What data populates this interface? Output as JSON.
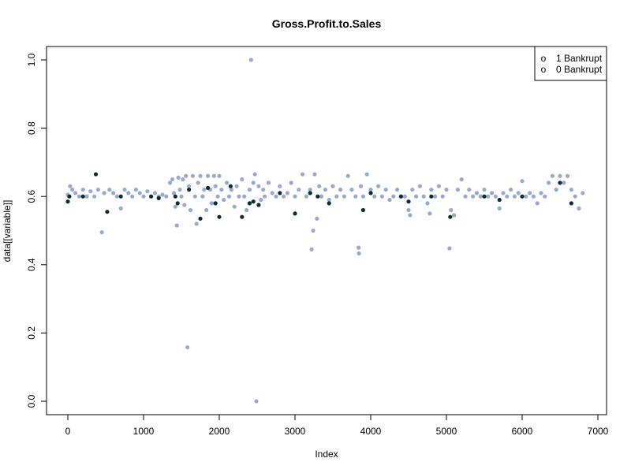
{
  "chart_data": {
    "type": "scatter",
    "title": "Gross.Profit.to.Sales",
    "xlabel": "Index",
    "ylabel": "data[[variable]]",
    "xlim": [
      0,
      7000
    ],
    "ylim": [
      0,
      1
    ],
    "x_ticks": [
      "0",
      "1000",
      "2000",
      "3000",
      "4000",
      "5000",
      "6000",
      "7000"
    ],
    "y_ticks": [
      "0.0",
      "0.2",
      "0.4",
      "0.6",
      "0.8",
      "1.0"
    ],
    "legend": {
      "position": "top-right",
      "entries": [
        {
          "symbol": "o",
          "label": "1 Bankrupt"
        },
        {
          "symbol": "o",
          "label": "0 Bankrupt"
        }
      ]
    },
    "colors": {
      "bankrupt_0": "#9aaacc",
      "bankrupt_1": "#0d2e2e"
    },
    "series": [
      {
        "name": "0 Bankrupt",
        "points": [
          [
            0,
            0.605
          ],
          [
            30,
            0.63
          ],
          [
            60,
            0.62
          ],
          [
            100,
            0.61
          ],
          [
            150,
            0.6
          ],
          [
            200,
            0.62
          ],
          [
            250,
            0.6
          ],
          [
            300,
            0.615
          ],
          [
            350,
            0.6
          ],
          [
            400,
            0.62
          ],
          [
            450,
            0.495
          ],
          [
            480,
            0.61
          ],
          [
            550,
            0.62
          ],
          [
            600,
            0.61
          ],
          [
            650,
            0.6
          ],
          [
            700,
            0.565
          ],
          [
            750,
            0.62
          ],
          [
            800,
            0.61
          ],
          [
            850,
            0.6
          ],
          [
            900,
            0.62
          ],
          [
            950,
            0.61
          ],
          [
            1000,
            0.6
          ],
          [
            1050,
            0.615
          ],
          [
            1100,
            0.6
          ],
          [
            1150,
            0.61
          ],
          [
            1200,
            0.6
          ],
          [
            1250,
            0.605
          ],
          [
            1300,
            0.6
          ],
          [
            1350,
            0.64
          ],
          [
            1380,
            0.65
          ],
          [
            1400,
            0.61
          ],
          [
            1420,
            0.57
          ],
          [
            1440,
            0.515
          ],
          [
            1460,
            0.655
          ],
          [
            1480,
            0.62
          ],
          [
            1500,
            0.6
          ],
          [
            1520,
            0.65
          ],
          [
            1540,
            0.575
          ],
          [
            1560,
            0.66
          ],
          [
            1580,
            0.158
          ],
          [
            1600,
            0.63
          ],
          [
            1620,
            0.56
          ],
          [
            1650,
            0.66
          ],
          [
            1680,
            0.6
          ],
          [
            1700,
            0.52
          ],
          [
            1720,
            0.64
          ],
          [
            1750,
            0.66
          ],
          [
            1780,
            0.6
          ],
          [
            1800,
            0.62
          ],
          [
            1830,
            0.56
          ],
          [
            1850,
            0.66
          ],
          [
            1880,
            0.62
          ],
          [
            1900,
            0.58
          ],
          [
            1930,
            0.66
          ],
          [
            1950,
            0.63
          ],
          [
            1980,
            0.6
          ],
          [
            2000,
            0.66
          ],
          [
            2030,
            0.62
          ],
          [
            2060,
            0.59
          ],
          [
            2100,
            0.64
          ],
          [
            2130,
            0.6
          ],
          [
            2160,
            0.62
          ],
          [
            2200,
            0.57
          ],
          [
            2230,
            0.63
          ],
          [
            2260,
            0.6
          ],
          [
            2300,
            0.65
          ],
          [
            2330,
            0.6
          ],
          [
            2360,
            0.56
          ],
          [
            2400,
            0.62
          ],
          [
            2420,
            1.0
          ],
          [
            2450,
            0.64
          ],
          [
            2470,
            0.665
          ],
          [
            2490,
            0.0
          ],
          [
            2520,
            0.63
          ],
          [
            2550,
            0.59
          ],
          [
            2580,
            0.62
          ],
          [
            2600,
            0.6
          ],
          [
            2650,
            0.64
          ],
          [
            2700,
            0.61
          ],
          [
            2750,
            0.6
          ],
          [
            2800,
            0.63
          ],
          [
            2850,
            0.6
          ],
          [
            2900,
            0.61
          ],
          [
            2950,
            0.64
          ],
          [
            3000,
            0.6
          ],
          [
            3050,
            0.62
          ],
          [
            3100,
            0.665
          ],
          [
            3150,
            0.6
          ],
          [
            3200,
            0.62
          ],
          [
            3220,
            0.445
          ],
          [
            3240,
            0.5
          ],
          [
            3260,
            0.665
          ],
          [
            3290,
            0.535
          ],
          [
            3320,
            0.63
          ],
          [
            3350,
            0.6
          ],
          [
            3400,
            0.62
          ],
          [
            3450,
            0.59
          ],
          [
            3500,
            0.63
          ],
          [
            3550,
            0.6
          ],
          [
            3600,
            0.62
          ],
          [
            3650,
            0.6
          ],
          [
            3700,
            0.66
          ],
          [
            3750,
            0.62
          ],
          [
            3800,
            0.6
          ],
          [
            3840,
            0.45
          ],
          [
            3845,
            0.433
          ],
          [
            3870,
            0.63
          ],
          [
            3900,
            0.6
          ],
          [
            3950,
            0.665
          ],
          [
            4000,
            0.62
          ],
          [
            4050,
            0.6
          ],
          [
            4100,
            0.63
          ],
          [
            4150,
            0.6
          ],
          [
            4200,
            0.62
          ],
          [
            4250,
            0.59
          ],
          [
            4300,
            0.6
          ],
          [
            4350,
            0.62
          ],
          [
            4400,
            0.6
          ],
          [
            4450,
            0.6
          ],
          [
            4500,
            0.56
          ],
          [
            4520,
            0.545
          ],
          [
            4550,
            0.62
          ],
          [
            4600,
            0.6
          ],
          [
            4650,
            0.63
          ],
          [
            4700,
            0.6
          ],
          [
            4750,
            0.58
          ],
          [
            4780,
            0.55
          ],
          [
            4800,
            0.62
          ],
          [
            4850,
            0.6
          ],
          [
            4900,
            0.63
          ],
          [
            4950,
            0.6
          ],
          [
            5000,
            0.62
          ],
          [
            5040,
            0.448
          ],
          [
            5060,
            0.56
          ],
          [
            5100,
            0.545
          ],
          [
            5150,
            0.62
          ],
          [
            5200,
            0.65
          ],
          [
            5250,
            0.6
          ],
          [
            5300,
            0.62
          ],
          [
            5350,
            0.6
          ],
          [
            5400,
            0.61
          ],
          [
            5450,
            0.6
          ],
          [
            5500,
            0.62
          ],
          [
            5550,
            0.6
          ],
          [
            5600,
            0.61
          ],
          [
            5650,
            0.6
          ],
          [
            5700,
            0.565
          ],
          [
            5750,
            0.61
          ],
          [
            5800,
            0.6
          ],
          [
            5850,
            0.62
          ],
          [
            5900,
            0.6
          ],
          [
            5950,
            0.61
          ],
          [
            6000,
            0.645
          ],
          [
            6050,
            0.6
          ],
          [
            6100,
            0.61
          ],
          [
            6150,
            0.6
          ],
          [
            6200,
            0.58
          ],
          [
            6250,
            0.61
          ],
          [
            6300,
            0.6
          ],
          [
            6350,
            0.64
          ],
          [
            6400,
            0.66
          ],
          [
            6450,
            0.62
          ],
          [
            6500,
            0.66
          ],
          [
            6550,
            0.64
          ],
          [
            6600,
            0.66
          ],
          [
            6650,
            0.62
          ],
          [
            6700,
            0.6
          ],
          [
            6750,
            0.565
          ],
          [
            6800,
            0.61
          ]
        ]
      },
      {
        "name": "1 Bankrupt",
        "points": [
          [
            0,
            0.585
          ],
          [
            20,
            0.6
          ],
          [
            200,
            0.6
          ],
          [
            370,
            0.665
          ],
          [
            520,
            0.555
          ],
          [
            700,
            0.6
          ],
          [
            1100,
            0.6
          ],
          [
            1200,
            0.595
          ],
          [
            1420,
            0.6
          ],
          [
            1450,
            0.58
          ],
          [
            1600,
            0.62
          ],
          [
            1750,
            0.535
          ],
          [
            1850,
            0.625
          ],
          [
            1950,
            0.58
          ],
          [
            2000,
            0.54
          ],
          [
            2150,
            0.63
          ],
          [
            2300,
            0.54
          ],
          [
            2400,
            0.58
          ],
          [
            2450,
            0.585
          ],
          [
            2520,
            0.575
          ],
          [
            2800,
            0.61
          ],
          [
            3000,
            0.55
          ],
          [
            3200,
            0.61
          ],
          [
            3300,
            0.6
          ],
          [
            3450,
            0.58
          ],
          [
            3900,
            0.56
          ],
          [
            4000,
            0.61
          ],
          [
            4400,
            0.6
          ],
          [
            4500,
            0.585
          ],
          [
            4800,
            0.6
          ],
          [
            5050,
            0.54
          ],
          [
            5500,
            0.6
          ],
          [
            5700,
            0.59
          ],
          [
            6000,
            0.6
          ],
          [
            6500,
            0.64
          ],
          [
            6650,
            0.58
          ]
        ]
      }
    ]
  }
}
